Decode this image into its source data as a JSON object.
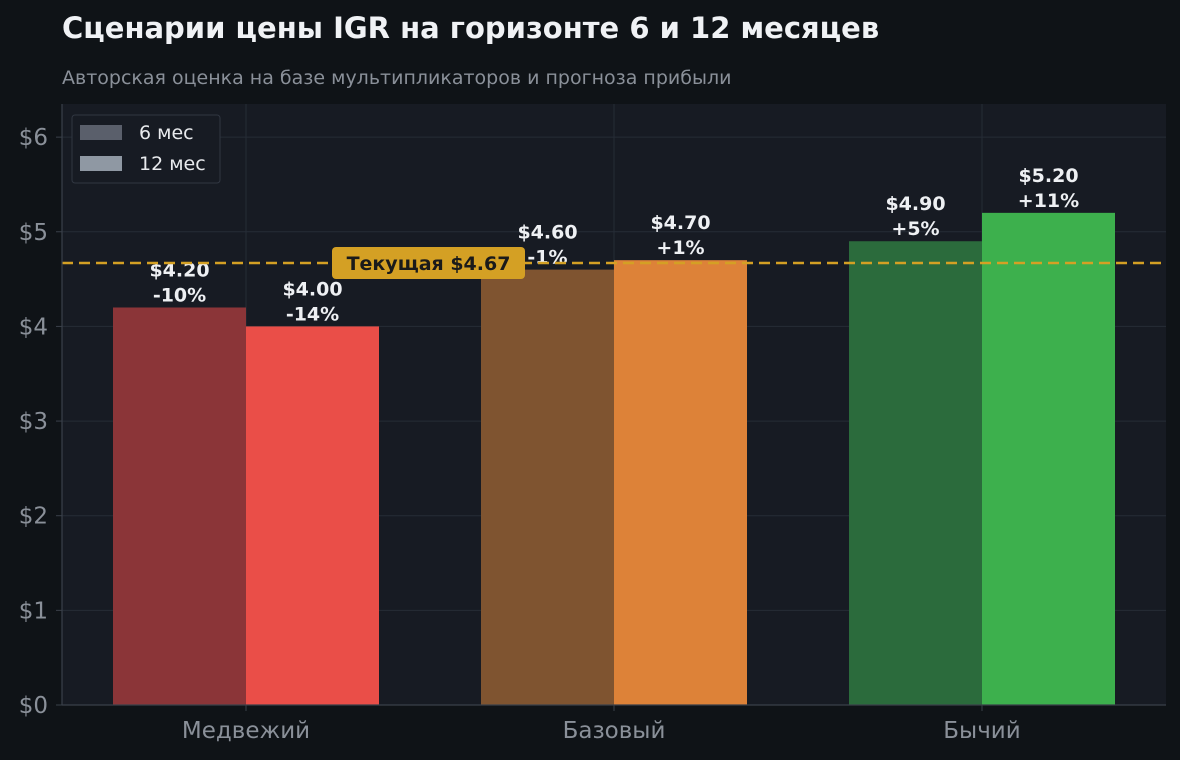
{
  "chart_data": {
    "type": "bar",
    "title": "Сценарии цены IGR на горизонте 6 и 12 месяцев",
    "subtitle": "Авторская оценка на базе мультипликаторов и прогноза прибыли",
    "categories": [
      "Медвежий",
      "Базовый",
      "Бычий"
    ],
    "series": [
      {
        "name": "6 мес",
        "values": [
          4.2,
          4.6,
          4.9
        ],
        "labels": [
          "$4.20",
          "$4.60",
          "$4.90"
        ],
        "changes": [
          "-10%",
          "-1%",
          "+5%"
        ],
        "colors": [
          "#8b3538",
          "#7f5430",
          "#2b6b3c"
        ]
      },
      {
        "name": "12 мес",
        "values": [
          4.0,
          4.7,
          5.2
        ],
        "labels": [
          "$4.00",
          "$4.70",
          "$5.20"
        ],
        "changes": [
          "-14%",
          "+1%",
          "+11%"
        ],
        "colors": [
          "#ea4e48",
          "#dd8238",
          "#3db04d"
        ]
      }
    ],
    "legend_colors": [
      "#5a5f6b",
      "#8f98a3"
    ],
    "legend_position": "top-left",
    "yticks": [
      0,
      1,
      2,
      3,
      4,
      5,
      6
    ],
    "ytick_labels": [
      "$0",
      "$1",
      "$2",
      "$3",
      "$4",
      "$5",
      "$6"
    ],
    "ylim": [
      0,
      6.35
    ],
    "grid": true,
    "reference_line": {
      "value": 4.67,
      "label": "Текущая $4.67",
      "color": "#d4a024"
    }
  }
}
